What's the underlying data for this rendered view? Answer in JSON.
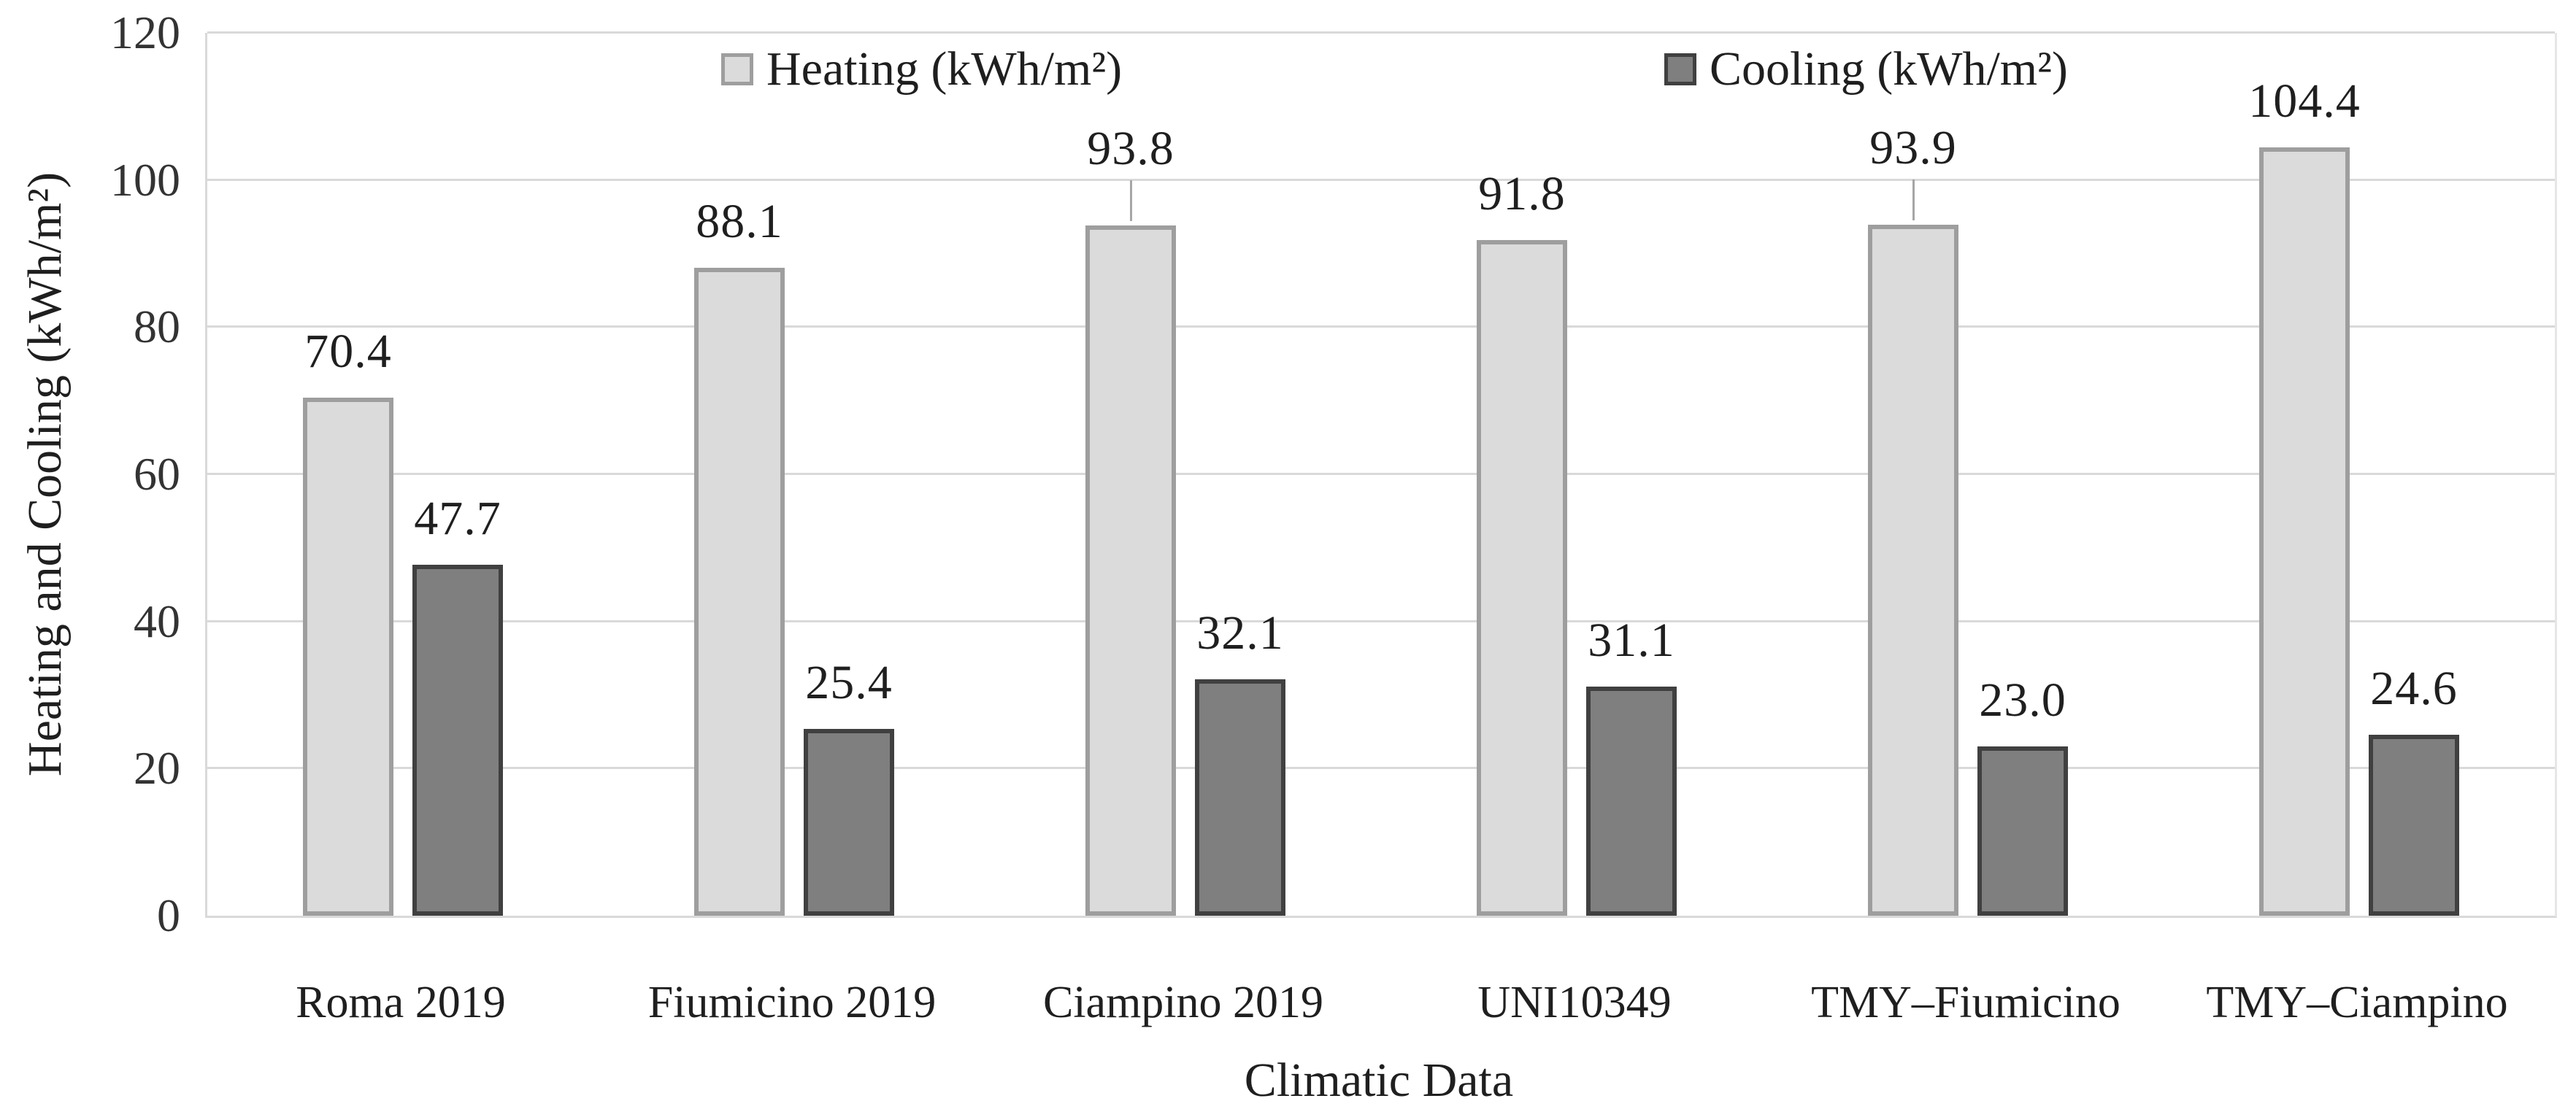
{
  "chart_data": {
    "type": "bar",
    "title": "",
    "xlabel": "Climatic Data",
    "ylabel": "Heating and Cooling (kWh/m²)",
    "categories": [
      "Roma 2019",
      "Fiumicino 2019",
      "Ciampino 2019",
      "UNI10349",
      "TMY–Fiumicino",
      "TMY–Ciampino"
    ],
    "series": [
      {
        "name": "Heating (kWh/m²)",
        "values": [
          70.4,
          88.1,
          93.8,
          91.8,
          93.9,
          104.4
        ],
        "labels": [
          "70.4",
          "88.1",
          "93.8",
          "91.8",
          "93.9",
          "104.4"
        ],
        "leader_lines": [
          false,
          false,
          true,
          false,
          true,
          false
        ],
        "fill": "#dbdbdb",
        "border": "#9e9e9e"
      },
      {
        "name": "Cooling (kWh/m²)",
        "values": [
          47.7,
          25.4,
          32.1,
          31.1,
          23.0,
          24.6
        ],
        "labels": [
          "47.7",
          "25.4",
          "32.1",
          "31.1",
          "23.0",
          "24.6"
        ],
        "leader_lines": [
          false,
          false,
          false,
          false,
          false,
          false
        ],
        "fill": "#7f7f7f",
        "border": "#404040"
      }
    ],
    "ylim": [
      0,
      120
    ],
    "yticks": [
      0,
      20,
      40,
      60,
      80,
      100,
      120
    ],
    "grid": true,
    "gridline_color": "#d9d9d9",
    "leader_line_color": "#a6a6a6",
    "legend_position": "top-inside",
    "label_color": "#1f1f1f"
  }
}
